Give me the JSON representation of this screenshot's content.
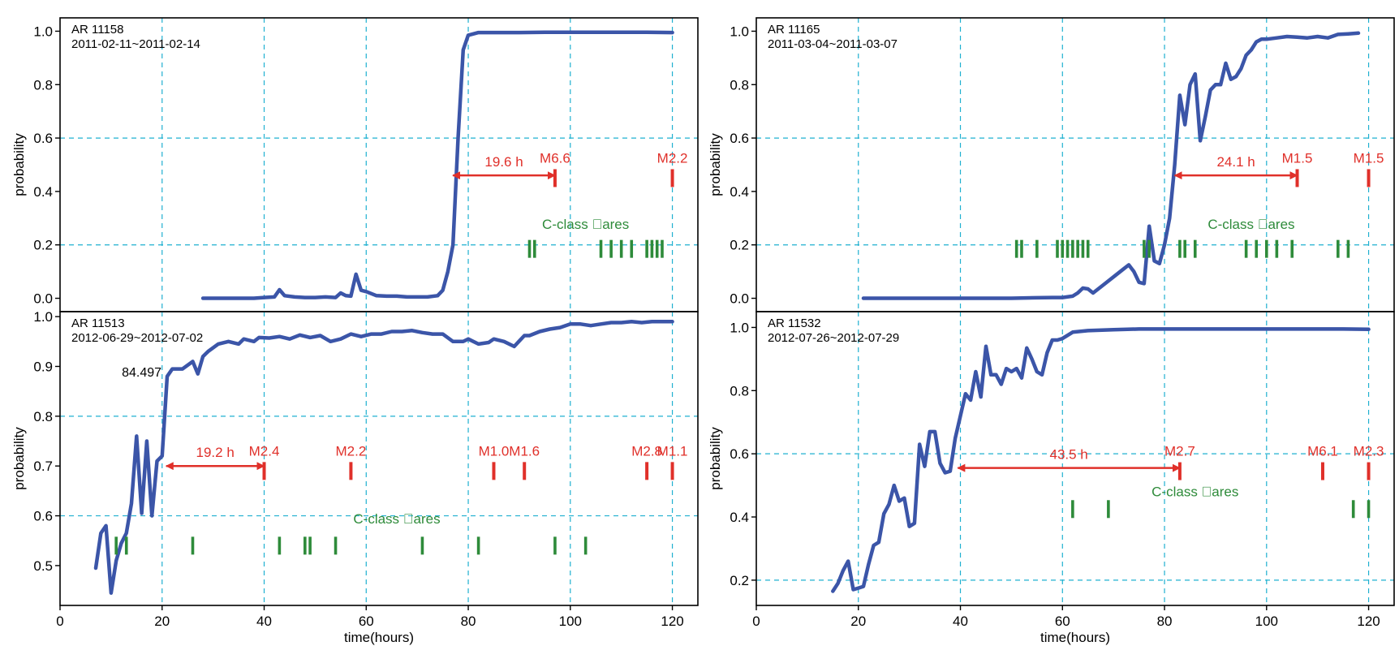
{
  "figure": {
    "ylabel": "probability",
    "xlabel": "time(hours)",
    "colors": {
      "curve": "#3b55a8",
      "grid": "#1fb0d0",
      "m_flare": "#e0302a",
      "c_flare": "#2e8b3a",
      "axis": "#000000"
    }
  },
  "chart_data": [
    {
      "type": "line",
      "panel": "top-left",
      "info": [
        "AR 11158",
        "2011-02-11~2011-02-14"
      ],
      "xlim": [
        0,
        125
      ],
      "ylim": [
        -0.05,
        1.05
      ],
      "xticks": [],
      "xtick_labels": [],
      "yticks": [
        0,
        0.2,
        0.4,
        0.6,
        0.8,
        1.0
      ],
      "ytick_labels": [
        "0.0",
        "0.2",
        "0.4",
        "0.6",
        "0.8",
        "1.0"
      ],
      "xgrid": [
        20,
        40,
        60,
        80,
        100,
        120
      ],
      "ygrid": [
        0.2,
        0.6
      ],
      "ylabel": "probability",
      "xlabel": "",
      "series": [
        {
          "x": [
            28,
            30,
            32,
            34,
            36,
            38,
            40,
            42,
            43,
            44,
            46,
            48,
            50,
            52,
            54,
            55,
            56,
            57,
            58,
            59,
            60,
            62,
            64,
            66,
            68,
            70,
            72,
            74,
            75,
            76,
            77,
            78,
            79,
            80,
            82,
            85,
            90,
            95,
            100,
            105,
            110,
            115,
            120
          ],
          "y": [
            0.0,
            0.0,
            0.0,
            0.0,
            0.0,
            0.0,
            0.003,
            0.005,
            0.032,
            0.01,
            0.005,
            0.003,
            0.003,
            0.005,
            0.003,
            0.02,
            0.01,
            0.008,
            0.09,
            0.03,
            0.025,
            0.01,
            0.008,
            0.008,
            0.005,
            0.005,
            0.005,
            0.01,
            0.03,
            0.1,
            0.2,
            0.6,
            0.93,
            0.985,
            0.995,
            0.995,
            0.995,
            0.996,
            0.996,
            0.996,
            0.996,
            0.996,
            0.995
          ]
        }
      ],
      "m_flares": [
        {
          "x": 97,
          "label": "M6.6"
        },
        {
          "x": 120,
          "label": "M2.2"
        }
      ],
      "m_flare_y": 0.45,
      "arrow": {
        "from": 77,
        "to": 97,
        "y": 0.46,
        "label": "19.6 h"
      },
      "c_flares": [
        92,
        93,
        106,
        108,
        110,
        112,
        115,
        116,
        117,
        118
      ],
      "c_flare_y": 0.185,
      "c_label": {
        "text": "C-class \u0000ares",
        "x": 103,
        "y": 0.26
      },
      "annotations": []
    },
    {
      "type": "line",
      "panel": "top-right",
      "info": [
        "AR 11165",
        "2011-03-04~2011-03-07"
      ],
      "xlim": [
        0,
        125
      ],
      "ylim": [
        -0.05,
        1.05
      ],
      "xticks": [],
      "xtick_labels": [],
      "yticks": [
        0,
        0.2,
        0.4,
        0.6,
        0.8,
        1.0
      ],
      "ytick_labels": [
        "0.0",
        "0.2",
        "0.4",
        "0.6",
        "0.8",
        "1.0"
      ],
      "xgrid": [
        20,
        40,
        60,
        80,
        100,
        120
      ],
      "ygrid": [
        0.2,
        0.6
      ],
      "ylabel": "probability",
      "xlabel": "",
      "series": [
        {
          "x": [
            21,
            25,
            30,
            35,
            40,
            45,
            50,
            55,
            58,
            60,
            62,
            63,
            64,
            65,
            66,
            68,
            70,
            72,
            73,
            74,
            75,
            76,
            77,
            78,
            79,
            80,
            81,
            82,
            83,
            84,
            85,
            86,
            87,
            88,
            89,
            90,
            91,
            92,
            93,
            94,
            95,
            96,
            97,
            98,
            99,
            100,
            102,
            104,
            106,
            108,
            110,
            112,
            114,
            116,
            118
          ],
          "y": [
            0.0,
            0.0,
            0.0,
            0.0,
            0.0,
            0.0,
            0.0,
            0.002,
            0.003,
            0.003,
            0.008,
            0.02,
            0.038,
            0.035,
            0.02,
            0.05,
            0.08,
            0.11,
            0.125,
            0.1,
            0.06,
            0.055,
            0.27,
            0.14,
            0.13,
            0.2,
            0.3,
            0.5,
            0.76,
            0.65,
            0.8,
            0.84,
            0.59,
            0.68,
            0.78,
            0.8,
            0.8,
            0.88,
            0.82,
            0.83,
            0.86,
            0.91,
            0.93,
            0.96,
            0.97,
            0.97,
            0.975,
            0.98,
            0.978,
            0.975,
            0.98,
            0.975,
            0.988,
            0.99,
            0.993
          ]
        }
      ],
      "m_flares": [
        {
          "x": 106,
          "label": "M1.5"
        },
        {
          "x": 120,
          "label": "M1.5"
        }
      ],
      "m_flare_y": 0.45,
      "arrow": {
        "from": 82,
        "to": 106,
        "y": 0.46,
        "label": "24.1 h"
      },
      "c_flares": [
        51,
        52,
        55,
        59,
        60,
        61,
        62,
        63,
        64,
        65,
        76,
        77,
        83,
        84,
        86,
        96,
        98,
        100,
        102,
        105,
        114,
        116
      ],
      "c_flare_y": 0.185,
      "c_label": {
        "text": "C-class \u0000ares",
        "x": 97,
        "y": 0.26
      },
      "annotations": []
    },
    {
      "type": "line",
      "panel": "bottom-left",
      "info": [
        "AR 11513",
        "2012-06-29~2012-07-02"
      ],
      "xlim": [
        0,
        125
      ],
      "ylim": [
        0.42,
        1.01
      ],
      "xticks": [
        0,
        20,
        40,
        60,
        80,
        100,
        120
      ],
      "xtick_labels": [
        "0",
        "20",
        "40",
        "60",
        "80",
        "100",
        "120"
      ],
      "yticks": [
        0.5,
        0.6,
        0.7,
        0.8,
        0.9,
        1.0
      ],
      "ytick_labels": [
        "0.5",
        "0.6",
        "0.7",
        "0.8",
        "0.9",
        "1.0"
      ],
      "xgrid": [
        20,
        40,
        60,
        80,
        100,
        120
      ],
      "ygrid": [
        0.6,
        0.8
      ],
      "ylabel": "probability",
      "xlabel": "time(hours)",
      "series": [
        {
          "x": [
            7,
            8,
            9,
            10,
            11,
            12,
            13,
            14,
            15,
            16,
            17,
            18,
            19,
            20,
            21,
            22,
            24,
            26,
            27,
            28,
            29,
            31,
            33,
            35,
            36,
            38,
            39,
            41,
            43,
            45,
            47,
            49,
            51,
            53,
            55,
            57,
            59,
            61,
            63,
            65,
            67,
            69,
            71,
            73,
            75,
            77,
            79,
            80,
            82,
            84,
            85,
            87,
            89,
            91,
            92,
            94,
            96,
            98,
            100,
            102,
            104,
            106,
            108,
            110,
            112,
            114,
            116,
            118,
            120
          ],
          "y": [
            0.495,
            0.565,
            0.58,
            0.445,
            0.51,
            0.545,
            0.565,
            0.625,
            0.76,
            0.605,
            0.75,
            0.6,
            0.71,
            0.72,
            0.88,
            0.895,
            0.895,
            0.91,
            0.885,
            0.92,
            0.93,
            0.945,
            0.95,
            0.945,
            0.955,
            0.95,
            0.958,
            0.957,
            0.96,
            0.955,
            0.963,
            0.958,
            0.962,
            0.95,
            0.955,
            0.965,
            0.96,
            0.965,
            0.965,
            0.97,
            0.97,
            0.972,
            0.968,
            0.965,
            0.965,
            0.95,
            0.95,
            0.955,
            0.945,
            0.948,
            0.955,
            0.95,
            0.94,
            0.962,
            0.962,
            0.97,
            0.975,
            0.978,
            0.985,
            0.985,
            0.982,
            0.985,
            0.988,
            0.988,
            0.99,
            0.988,
            0.99,
            0.99,
            0.99
          ]
        }
      ],
      "m_flares": [
        {
          "x": 40,
          "label": "M2.4"
        },
        {
          "x": 57,
          "label": "M2.2"
        },
        {
          "x": 85,
          "label": "M1.0"
        },
        {
          "x": 91,
          "label": "M1.6"
        },
        {
          "x": 115,
          "label": "M2.8"
        },
        {
          "x": 120,
          "label": "M1.1"
        }
      ],
      "m_flare_y": 0.69,
      "arrow": {
        "from": 20.8,
        "to": 40,
        "y": 0.7,
        "label": "19.2 h"
      },
      "c_flares": [
        11,
        13,
        26,
        43,
        48,
        49,
        54,
        71,
        82,
        97,
        103
      ],
      "c_flare_y": 0.54,
      "c_label": {
        "text": "C-class \u0000ares",
        "x": 66,
        "y": 0.585
      },
      "annotations": [
        {
          "text": "84.497",
          "x": 16,
          "y": 0.88
        }
      ]
    },
    {
      "type": "line",
      "panel": "bottom-right",
      "info": [
        "AR 11532",
        "2012-07-26~2012-07-29"
      ],
      "xlim": [
        0,
        125
      ],
      "ylim": [
        0.12,
        1.05
      ],
      "xticks": [
        0,
        20,
        40,
        60,
        80,
        100,
        120
      ],
      "xtick_labels": [
        "0",
        "20",
        "40",
        "60",
        "80",
        "100",
        "120"
      ],
      "yticks": [
        0.2,
        0.4,
        0.6,
        0.8,
        1.0
      ],
      "ytick_labels": [
        "0.2",
        "0.4",
        "0.6",
        "0.8",
        "1.0"
      ],
      "xgrid": [
        20,
        40,
        60,
        80,
        100,
        120
      ],
      "ygrid": [
        0.2,
        0.6
      ],
      "ylabel": "probability",
      "xlabel": "time(hours)",
      "series": [
        {
          "x": [
            15,
            16,
            17,
            18,
            19,
            20,
            21,
            22,
            23,
            24,
            25,
            26,
            27,
            28,
            29,
            30,
            31,
            32,
            33,
            34,
            35,
            36,
            37,
            38,
            39,
            40,
            41,
            42,
            43,
            44,
            45,
            46,
            47,
            48,
            49,
            50,
            51,
            52,
            53,
            54,
            55,
            56,
            57,
            58,
            59,
            60,
            62,
            65,
            70,
            75,
            80,
            85,
            90,
            95,
            100,
            105,
            110,
            115,
            120
          ],
          "y": [
            0.165,
            0.19,
            0.23,
            0.26,
            0.17,
            0.175,
            0.18,
            0.25,
            0.31,
            0.32,
            0.41,
            0.44,
            0.5,
            0.45,
            0.46,
            0.37,
            0.38,
            0.63,
            0.56,
            0.67,
            0.67,
            0.57,
            0.54,
            0.545,
            0.65,
            0.72,
            0.79,
            0.77,
            0.86,
            0.78,
            0.94,
            0.85,
            0.85,
            0.82,
            0.87,
            0.86,
            0.87,
            0.84,
            0.935,
            0.9,
            0.86,
            0.85,
            0.92,
            0.96,
            0.96,
            0.965,
            0.985,
            0.99,
            0.993,
            0.995,
            0.995,
            0.995,
            0.995,
            0.995,
            0.995,
            0.995,
            0.995,
            0.995,
            0.994
          ]
        }
      ],
      "m_flares": [
        {
          "x": 83,
          "label": "M2.7"
        },
        {
          "x": 111,
          "label": "M6.1"
        },
        {
          "x": 120,
          "label": "M2.3"
        }
      ],
      "m_flare_y": 0.545,
      "arrow": {
        "from": 39.5,
        "to": 83,
        "y": 0.555,
        "label": "43.5 h"
      },
      "c_flares": [
        62,
        69,
        117,
        120
      ],
      "c_flare_y": 0.425,
      "c_label": {
        "text": "C-class \u0000ares",
        "x": 86,
        "y": 0.465
      },
      "annotations": []
    }
  ]
}
